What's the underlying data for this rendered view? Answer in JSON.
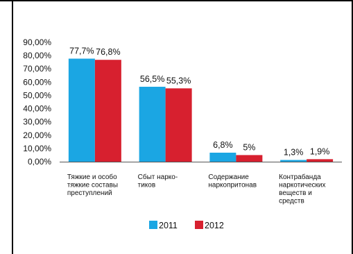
{
  "chart_data": {
    "type": "bar",
    "categories": [
      [
        "Тяжкие и особо",
        "тяжкие составы",
        "преступлений"
      ],
      [
        "Сбыт нарко-",
        "тиков"
      ],
      [
        "Содержание",
        "наркопритонав"
      ],
      [
        "Контрабанда",
        "наркотических",
        "веществ и",
        "средств"
      ]
    ],
    "series": [
      {
        "name": "2011",
        "values": [
          77.7,
          56.5,
          6.8,
          1.3
        ],
        "labels": [
          "77,7%",
          "56,5%",
          "6,8%",
          "1,3%"
        ],
        "color": "#1ba6e3"
      },
      {
        "name": "2012",
        "values": [
          76.8,
          55.3,
          5,
          1.9
        ],
        "labels": [
          "76,8%",
          "55,3%",
          "5%",
          "1,9%"
        ],
        "color": "#d7202f"
      }
    ],
    "ylim": [
      0,
      90
    ],
    "yticks": [
      "0,00%",
      "10,00%",
      "20,00%",
      "30,00%",
      "40,00%",
      "50,00%",
      "60,00%",
      "70,00%",
      "80,00%",
      "90,00%"
    ],
    "legend_position": "bottom-center",
    "grid": false,
    "title": "",
    "xlabel": "",
    "ylabel": ""
  },
  "colors": {
    "frame": "#000000",
    "axis": "#555555"
  }
}
